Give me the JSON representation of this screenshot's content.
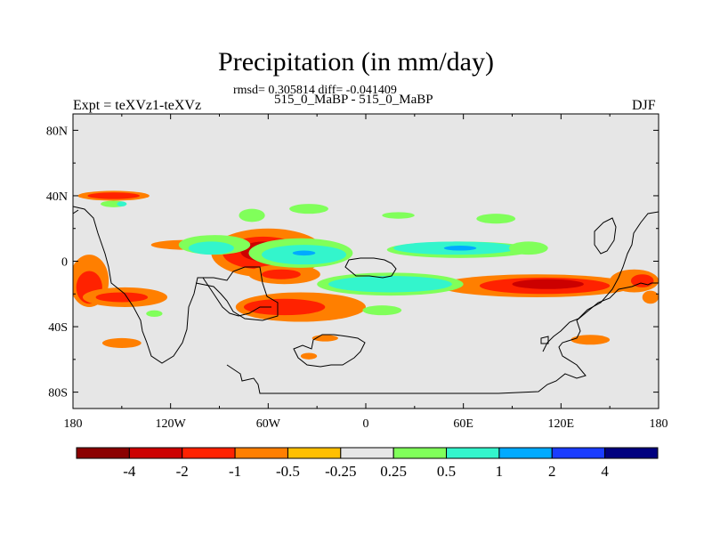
{
  "chart_data": {
    "type": "heatmap",
    "title": "Precipitation (in mm/day)",
    "stats_text": "rmsd= 0.305814 diff= -0.041409",
    "subtitle": "515_0_MaBP - 515_0_MaBP",
    "left_label": "Expt = teXVz1-teXVz",
    "right_label": "DJF",
    "x_ticks": [
      "180",
      "120W",
      "60W",
      "0",
      "60E",
      "120E",
      "180"
    ],
    "x_tick_values": [
      -180,
      -120,
      -60,
      0,
      60,
      120,
      180
    ],
    "y_ticks": [
      "80N",
      "40N",
      "0",
      "40S",
      "80S"
    ],
    "y_tick_values": [
      80,
      40,
      0,
      -40,
      -80
    ],
    "xlim": [
      -180,
      180
    ],
    "ylim": [
      -90,
      90
    ],
    "colorbar": {
      "labels": [
        "-4",
        "-2",
        "-1",
        "-0.5",
        "-0.25",
        "0.25",
        "0.5",
        "1",
        "2",
        "4"
      ],
      "colors": [
        "#8b0000",
        "#cc0000",
        "#ff2200",
        "#ff7f00",
        "#ffbf00",
        "#e6e6e6",
        "#80ff5a",
        "#33f5cc",
        "#00aaff",
        "#1a3cff",
        "#00007f"
      ]
    },
    "anomaly_regions": [
      {
        "category": "-0.5",
        "cx": -155,
        "cy": 40,
        "rx": 22,
        "ry": 3
      },
      {
        "category": "-1",
        "cx": -155,
        "cy": 40,
        "rx": 16,
        "ry": 2
      },
      {
        "category": "-0.5",
        "cx": -170,
        "cy": -12,
        "rx": 12,
        "ry": 16
      },
      {
        "category": "-1",
        "cx": -170,
        "cy": -16,
        "rx": 8,
        "ry": 10
      },
      {
        "category": "-0.5",
        "cx": -148,
        "cy": -22,
        "rx": 26,
        "ry": 6
      },
      {
        "category": "-1",
        "cx": -150,
        "cy": -22,
        "rx": 16,
        "ry": 3
      },
      {
        "category": "-0.5",
        "cx": -150,
        "cy": -50,
        "rx": 12,
        "ry": 3
      },
      {
        "category": "-0.5",
        "cx": -110,
        "cy": 10,
        "rx": 22,
        "ry": 3
      },
      {
        "category": "-0.5",
        "cx": -60,
        "cy": 5,
        "rx": 35,
        "ry": 15
      },
      {
        "category": "-1",
        "cx": -63,
        "cy": 5,
        "rx": 25,
        "ry": 10
      },
      {
        "category": "-2",
        "cx": -63,
        "cy": 6,
        "rx": 14,
        "ry": 6
      },
      {
        "category": "-0.5",
        "cx": -40,
        "cy": -28,
        "rx": 40,
        "ry": 9
      },
      {
        "category": "-1",
        "cx": -50,
        "cy": -28,
        "rx": 25,
        "ry": 5
      },
      {
        "category": "-0.5",
        "cx": -50,
        "cy": -8,
        "rx": 22,
        "ry": 6
      },
      {
        "category": "-1",
        "cx": -52,
        "cy": -8,
        "rx": 12,
        "ry": 3
      },
      {
        "category": "-0.5",
        "cx": -25,
        "cy": -47,
        "rx": 8,
        "ry": 2
      },
      {
        "category": "-0.5",
        "cx": -35,
        "cy": -58,
        "rx": 5,
        "ry": 2
      },
      {
        "category": "-0.5",
        "cx": 105,
        "cy": -15,
        "rx": 60,
        "ry": 7
      },
      {
        "category": "-1",
        "cx": 110,
        "cy": -15,
        "rx": 40,
        "ry": 5
      },
      {
        "category": "-2",
        "cx": 112,
        "cy": -14,
        "rx": 22,
        "ry": 3
      },
      {
        "category": "-0.5",
        "cx": 165,
        "cy": -12,
        "rx": 15,
        "ry": 7
      },
      {
        "category": "-1",
        "cx": 170,
        "cy": -12,
        "rx": 7,
        "ry": 4
      },
      {
        "category": "-0.5",
        "cx": 138,
        "cy": -48,
        "rx": 12,
        "ry": 3
      },
      {
        "category": "-0.5",
        "cx": 175,
        "cy": -22,
        "rx": 5,
        "ry": 4
      },
      {
        "category": "0.25",
        "cx": -155,
        "cy": 35,
        "rx": 8,
        "ry": 2
      },
      {
        "category": "0.5",
        "cx": -150,
        "cy": 35,
        "rx": 3,
        "ry": 1.5
      },
      {
        "category": "0.25",
        "cx": -93,
        "cy": 10,
        "rx": 22,
        "ry": 6
      },
      {
        "category": "0.5",
        "cx": -95,
        "cy": 8,
        "rx": 14,
        "ry": 4
      },
      {
        "category": "0.25",
        "cx": -70,
        "cy": 28,
        "rx": 8,
        "ry": 4
      },
      {
        "category": "0.25",
        "cx": -40,
        "cy": 5,
        "rx": 32,
        "ry": 9
      },
      {
        "category": "0.5",
        "cx": -38,
        "cy": 4,
        "rx": 26,
        "ry": 6
      },
      {
        "category": "1",
        "cx": -38,
        "cy": 5,
        "rx": 7,
        "ry": 1.5
      },
      {
        "category": "0.25",
        "cx": -35,
        "cy": 32,
        "rx": 12,
        "ry": 3
      },
      {
        "category": "0.25",
        "cx": 20,
        "cy": 28,
        "rx": 10,
        "ry": 2
      },
      {
        "category": "0.25",
        "cx": 58,
        "cy": 7,
        "rx": 45,
        "ry": 5
      },
      {
        "category": "0.5",
        "cx": 55,
        "cy": 8,
        "rx": 38,
        "ry": 4
      },
      {
        "category": "1",
        "cx": 58,
        "cy": 8,
        "rx": 10,
        "ry": 1.5
      },
      {
        "category": "0.25",
        "cx": 15,
        "cy": -14,
        "rx": 45,
        "ry": 7
      },
      {
        "category": "0.5",
        "cx": 15,
        "cy": -14,
        "rx": 38,
        "ry": 5
      },
      {
        "category": "0.25",
        "cx": 80,
        "cy": 26,
        "rx": 12,
        "ry": 3
      },
      {
        "category": "0.25",
        "cx": 100,
        "cy": 8,
        "rx": 12,
        "ry": 4
      },
      {
        "category": "0.25",
        "cx": 10,
        "cy": -30,
        "rx": 12,
        "ry": 3
      },
      {
        "category": "0.25",
        "cx": -130,
        "cy": -32,
        "rx": 5,
        "ry": 2
      }
    ]
  }
}
